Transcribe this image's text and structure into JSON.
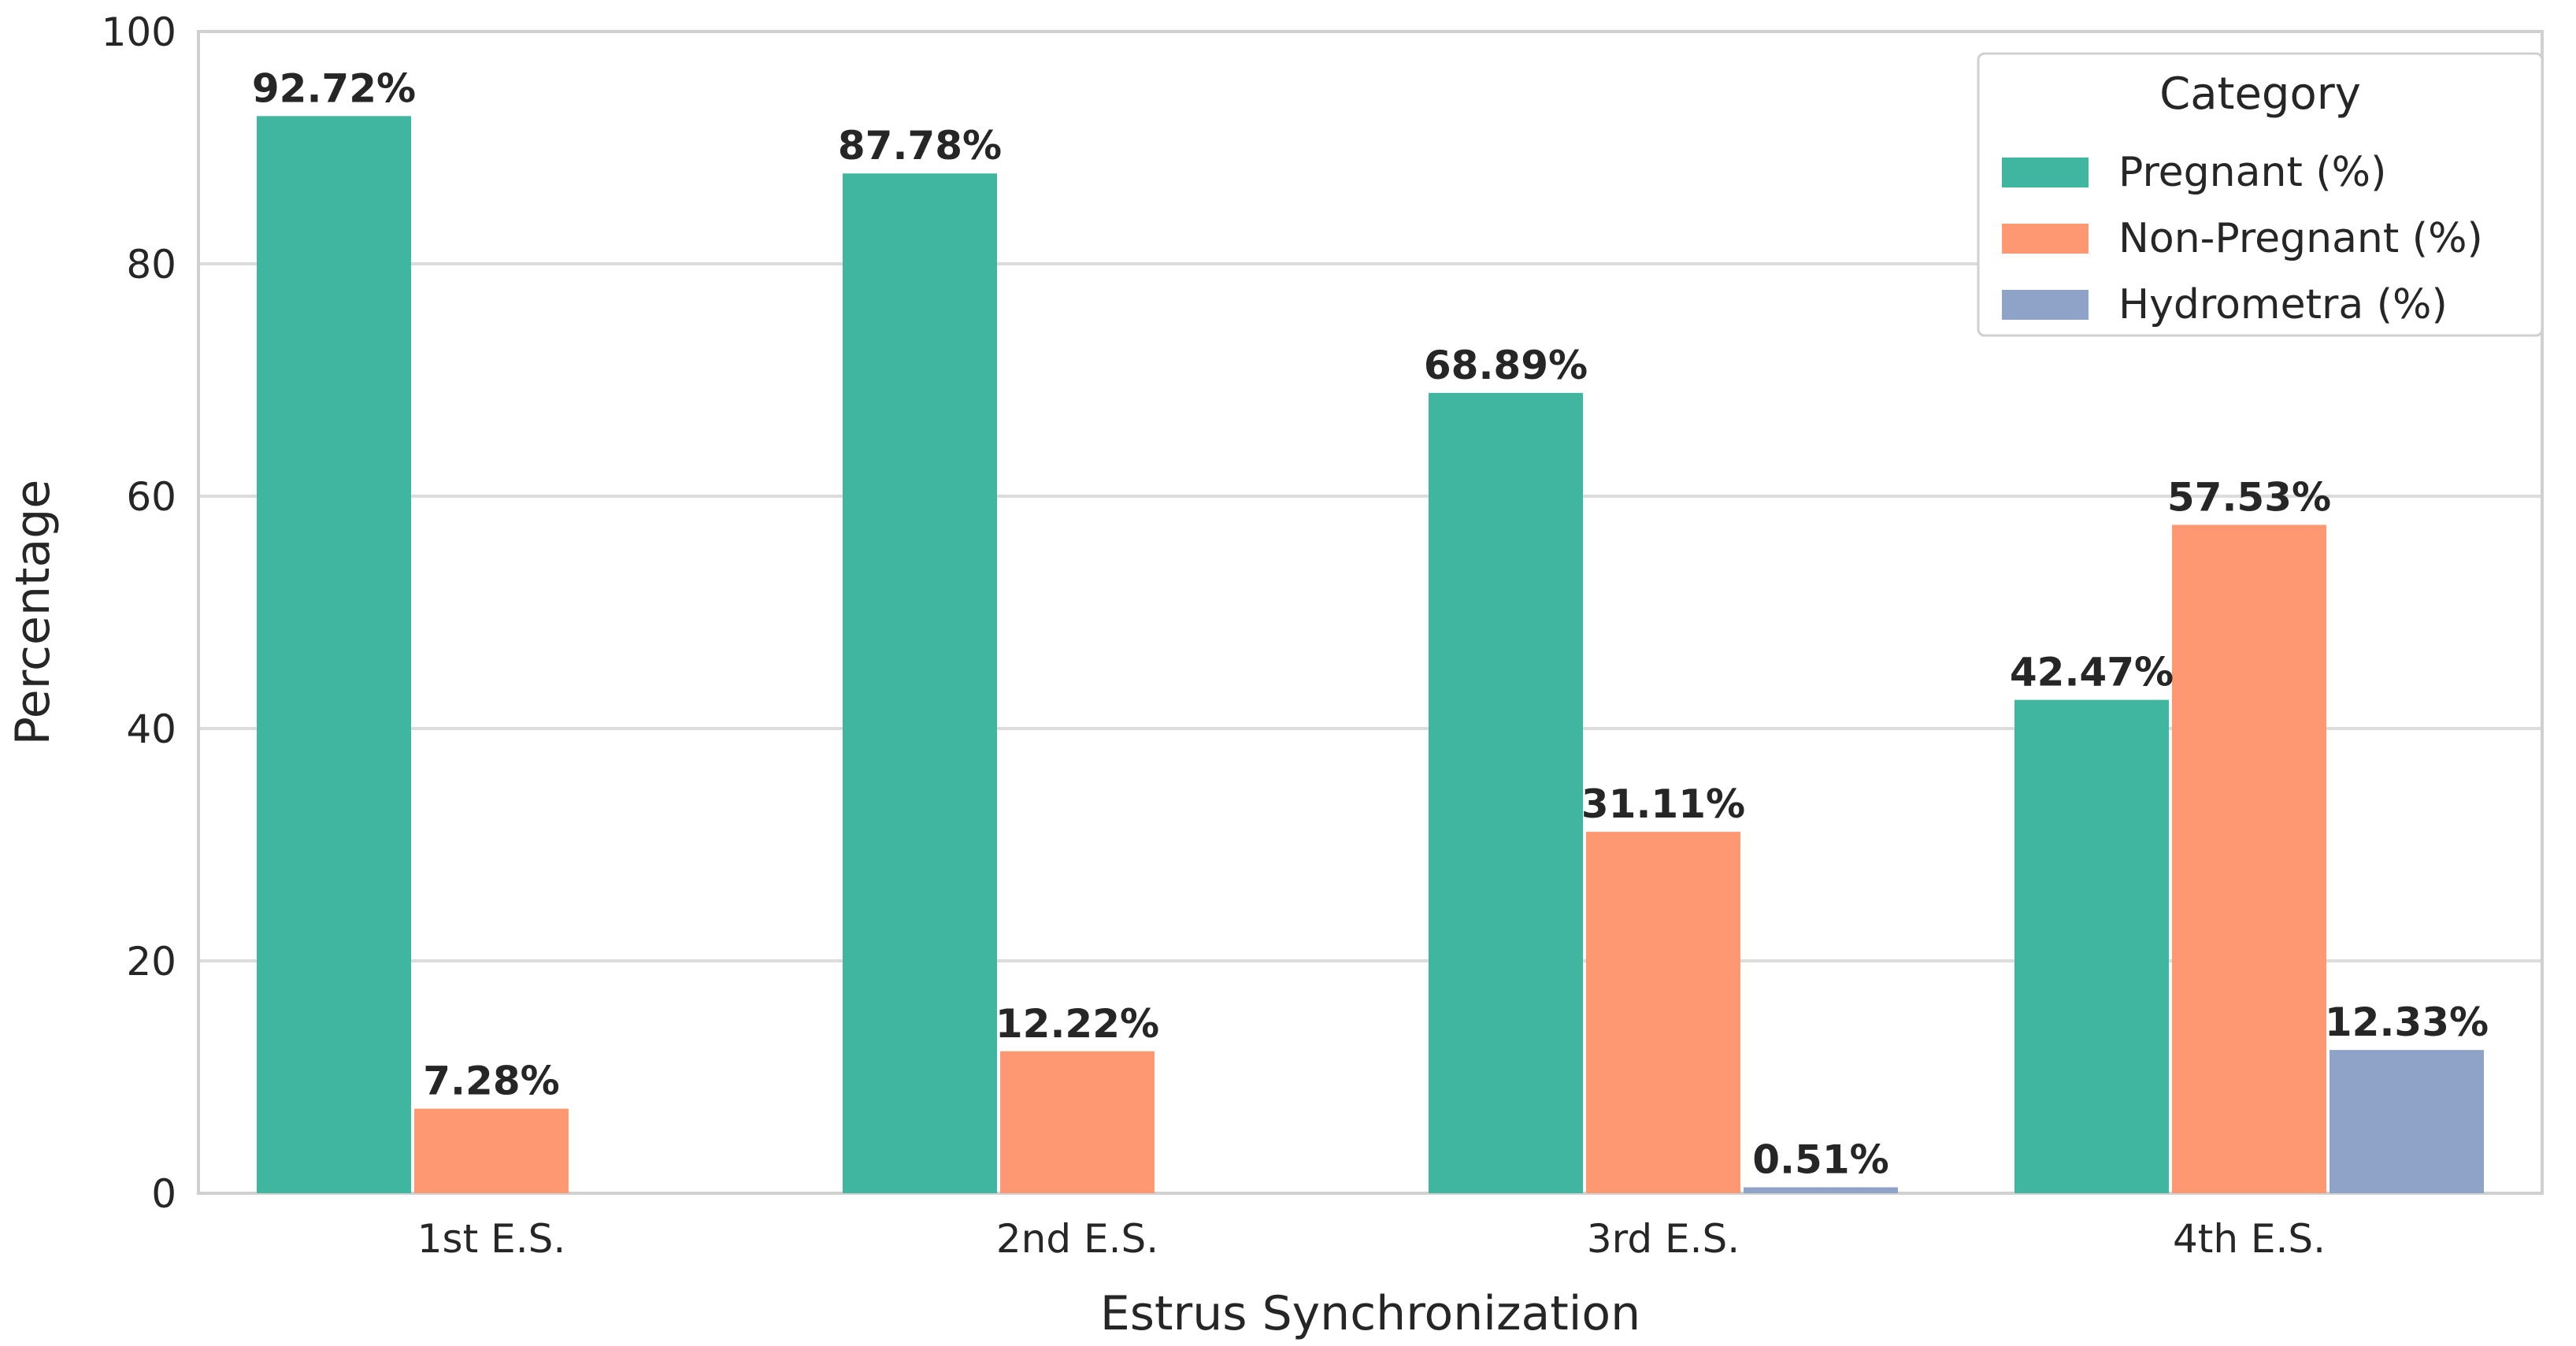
{
  "chart_data": {
    "type": "bar",
    "xlabel": "Estrus Synchronization",
    "ylabel": "Percentage",
    "ylim": [
      0,
      100
    ],
    "yticks": [
      0,
      20,
      40,
      60,
      80,
      100
    ],
    "grid": true,
    "categories": [
      "1st E.S.",
      "2nd E.S.",
      "3rd E.S.",
      "4th E.S."
    ],
    "legend": {
      "title": "Category",
      "placement": "top-right"
    },
    "series": [
      {
        "name": "Pregnant (%)",
        "color": "#40b6a1",
        "values": [
          92.72,
          87.78,
          68.89,
          42.47
        ],
        "labels": [
          "92.72%",
          "87.78%",
          "68.89%",
          "42.47%"
        ]
      },
      {
        "name": "Non-Pregnant (%)",
        "color": "#fe9872",
        "values": [
          7.28,
          12.22,
          31.11,
          57.53
        ],
        "labels": [
          "7.28%",
          "12.22%",
          "31.11%",
          "57.53%"
        ]
      },
      {
        "name": "Hydrometra (%)",
        "color": "#8fa3c8",
        "values": [
          null,
          null,
          0.51,
          12.33
        ],
        "labels": [
          null,
          null,
          "0.51%",
          "12.33%"
        ]
      }
    ]
  }
}
